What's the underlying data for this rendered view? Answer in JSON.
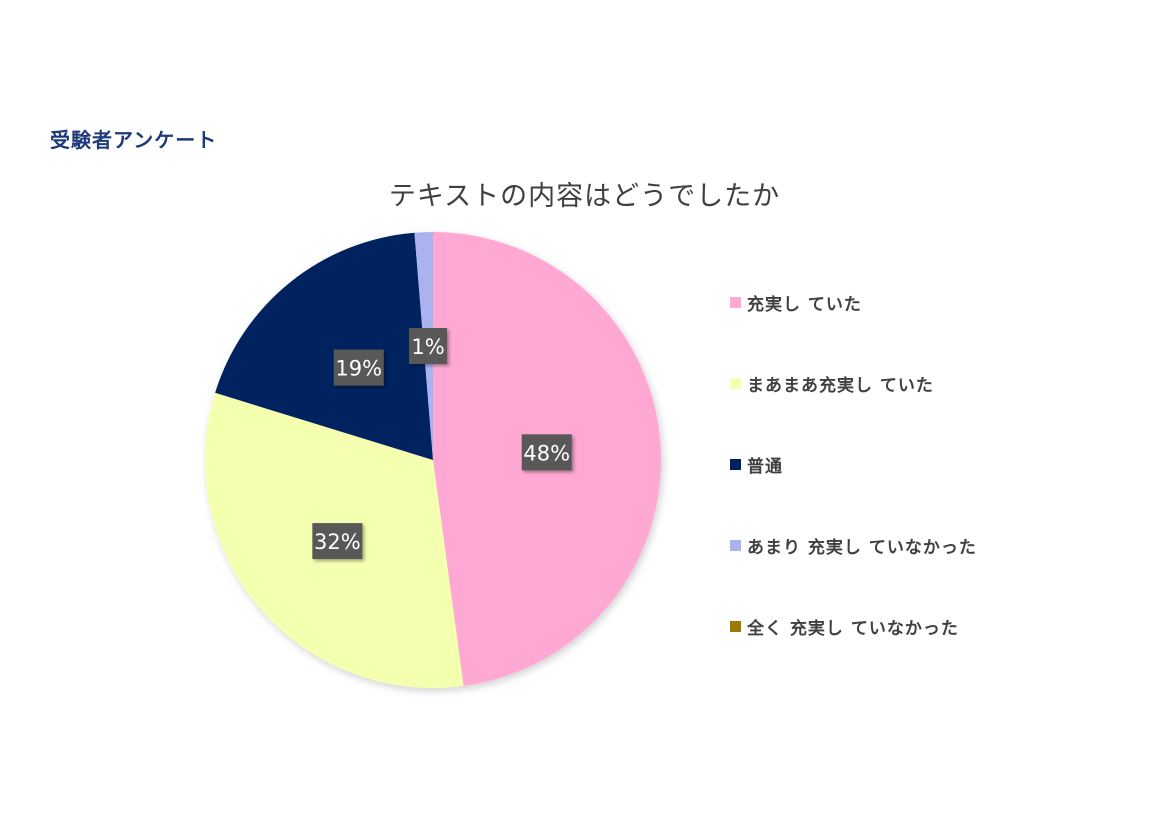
{
  "header": {
    "title": "受験者アンケート"
  },
  "chart_data": {
    "type": "pie",
    "title": "テキストの内容はどうでしたか",
    "categories": [
      "充実していた",
      "まあまあ充実していた",
      "普通",
      "あまり充実していなかった",
      "全く充実していなかった"
    ],
    "legend_labels": [
      "充実し ていた",
      "まあまあ充実し ていた",
      "普通",
      "あまり 充実し ていなかった",
      "全く 充実し ていなかった"
    ],
    "values": [
      48,
      32,
      19,
      1.3,
      0
    ],
    "data_labels": [
      "48%",
      "32%",
      "19%",
      "1%",
      ""
    ],
    "colors": [
      "#ffa8d3",
      "#f5ffb0",
      "#02205f",
      "#aab2f0",
      "#9c7a00"
    ],
    "legend_position": "right",
    "start_angle": "top, clockwise"
  }
}
